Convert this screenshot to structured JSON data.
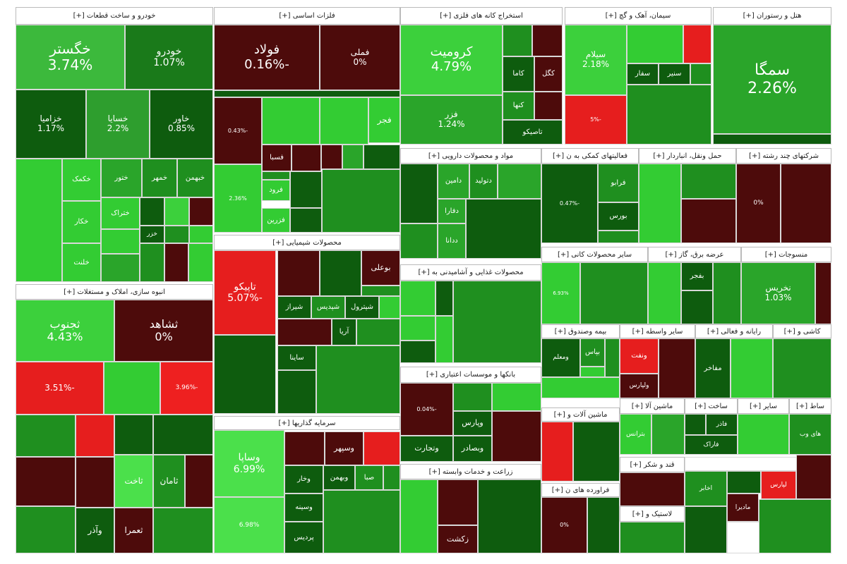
{
  "sectors": [
    {
      "title": "خودرو و ساخت قطعات [+]",
      "tiles": [
        {
          "name": "خگستر",
          "change": "3.74%"
        },
        {
          "name": "خودرو",
          "change": "1.07%"
        },
        {
          "name": "خزامیا",
          "change": "1.17%"
        },
        {
          "name": "خسایا",
          "change": "2.2%"
        },
        {
          "name": "خاور",
          "change": "0.85%"
        },
        {
          "name": "خکمک"
        },
        {
          "name": "ختور"
        },
        {
          "name": "خمهر"
        },
        {
          "name": "خبهمن"
        },
        {
          "name": "ختراک"
        },
        {
          "name": "خکار"
        },
        {
          "name": "خلنت"
        },
        {
          "name": "خزر"
        }
      ]
    },
    {
      "title": "انبوه سازی، املاک و مستغلات [+]",
      "tiles": [
        {
          "name": "ثجنوب",
          "change": "4.43%"
        },
        {
          "name": "ثشاهد",
          "change": "0%"
        },
        {
          "change": "-3.51%"
        },
        {
          "change": "-3.96%"
        },
        {
          "name": "ثاخت"
        },
        {
          "name": "ثامان"
        },
        {
          "name": "وآذر"
        },
        {
          "name": "ثعمرا"
        }
      ]
    },
    {
      "title": "فلزات اساسی [+]",
      "tiles": [
        {
          "name": "فولاد",
          "change": "-0.16%"
        },
        {
          "name": "فملی",
          "change": "0%"
        },
        {
          "change": "-0.43%"
        },
        {
          "name": "فجر"
        },
        {
          "name": "فسبا"
        },
        {
          "name": "فرود"
        },
        {
          "name": "فزرین"
        },
        {
          "change": "2.36%"
        }
      ]
    },
    {
      "title": "محصولات شیمیایی [+]",
      "tiles": [
        {
          "name": "تاپیکو",
          "change": "-5.07%"
        },
        {
          "name": "بوعلی"
        },
        {
          "name": "شیراز"
        },
        {
          "name": "شپدیس"
        },
        {
          "name": "شپترول"
        },
        {
          "name": "آریا"
        },
        {
          "name": "ساینا"
        }
      ]
    },
    {
      "title": "سرمایه گذاریها [+]",
      "tiles": [
        {
          "name": "وساپا",
          "change": "6.99%"
        },
        {
          "change": "6.98%"
        },
        {
          "name": "وسپهر"
        },
        {
          "name": "وخار"
        },
        {
          "name": "وبهمن"
        },
        {
          "name": "صبا"
        },
        {
          "name": "وسینه"
        },
        {
          "name": "پردیس"
        }
      ]
    },
    {
      "title": "استخراج کانه های فلزی [+]",
      "tiles": [
        {
          "name": "کرومیت",
          "change": "4.79%"
        },
        {
          "name": "فزر",
          "change": "1.24%"
        },
        {
          "name": "کاما"
        },
        {
          "name": "کگل"
        },
        {
          "name": "کنها"
        },
        {
          "name": "تاصیکو"
        }
      ]
    },
    {
      "title": "مواد و محصولات دارویی [+]",
      "tiles": [
        {
          "name": "دامین"
        },
        {
          "name": "دتولید"
        },
        {
          "name": "دفارا"
        },
        {
          "name": "ددانا"
        }
      ]
    },
    {
      "title": "محصولات غذایی و آشامیدنی به [+]",
      "tiles": []
    },
    {
      "title": "بانکها و موسسات اعتباری [+]",
      "tiles": [
        {
          "change": "-0.04%"
        },
        {
          "name": "وپارس"
        },
        {
          "name": "وبصادر"
        },
        {
          "name": "وتجارت"
        }
      ]
    },
    {
      "title": "زراعت و خدمات وابسته [+]",
      "tiles": [
        {
          "name": "زکشت"
        }
      ]
    },
    {
      "title": "سیمان، آهک و گچ [+]",
      "tiles": [
        {
          "name": "سیلام",
          "change": "2.18%"
        },
        {
          "change": "-5%"
        },
        {
          "name": "سفار"
        },
        {
          "name": "سنیر"
        }
      ]
    },
    {
      "title": "هتل و رستوران [+]",
      "tiles": [
        {
          "name": "سمگا",
          "change": "2.26%"
        }
      ]
    },
    {
      "title": "فعالیتهای کمکی به ن [+]",
      "tiles": [
        {
          "change": "-0.47%"
        },
        {
          "name": "فرابو"
        },
        {
          "name": "بورس"
        }
      ]
    },
    {
      "title": "حمل ونقل، انباردار [+]",
      "tiles": []
    },
    {
      "title": "شرکتهای چند رشته [+]",
      "tiles": [
        {
          "change": "0%"
        }
      ]
    },
    {
      "title": "سایر محصولات کانی [+]",
      "tiles": [
        {
          "change": "6.93%"
        }
      ]
    },
    {
      "title": "عرضه برق، گاز [+]",
      "tiles": [
        {
          "name": "بفجر"
        }
      ]
    },
    {
      "title": "منسوجات [+]",
      "tiles": [
        {
          "name": "نخریس",
          "change": "1.03%"
        }
      ]
    },
    {
      "title": "بیمه وصندوق [+]",
      "tiles": [
        {
          "name": "بپاس"
        },
        {
          "name": "ومعلم"
        }
      ]
    },
    {
      "title": "سایر واسطه [+]",
      "tiles": [
        {
          "name": "ونفت"
        },
        {
          "name": "ولپارس"
        }
      ]
    },
    {
      "title": "رایانه و فعالی [+]",
      "tiles": [
        {
          "name": "مفاخر"
        }
      ]
    },
    {
      "title": "کاشی و [+]",
      "tiles": []
    },
    {
      "title": "ماشین آلات و [+]",
      "tiles": []
    },
    {
      "title": "ماشین آلا [+]",
      "tiles": [
        {
          "name": "بترانس"
        }
      ]
    },
    {
      "title": "ساخت [+]",
      "tiles": [
        {
          "name": "فاذر"
        },
        {
          "name": "فاراک"
        }
      ]
    },
    {
      "title": "سایر [+]",
      "tiles": []
    },
    {
      "title": "ساط [+]",
      "tiles": [
        {
          "name": "های وب"
        }
      ]
    },
    {
      "title": "قند و شکر [+]",
      "tiles": []
    },
    {
      "title": "فراورده های ن [+]",
      "tiles": [
        {
          "change": "0%"
        }
      ]
    },
    {
      "title": "لاستیک و [+]",
      "tiles": []
    }
  ],
  "other_tiles": [
    {
      "name": "مادیرا"
    },
    {
      "name": "لپارس"
    },
    {
      "name": "اخابر"
    }
  ]
}
